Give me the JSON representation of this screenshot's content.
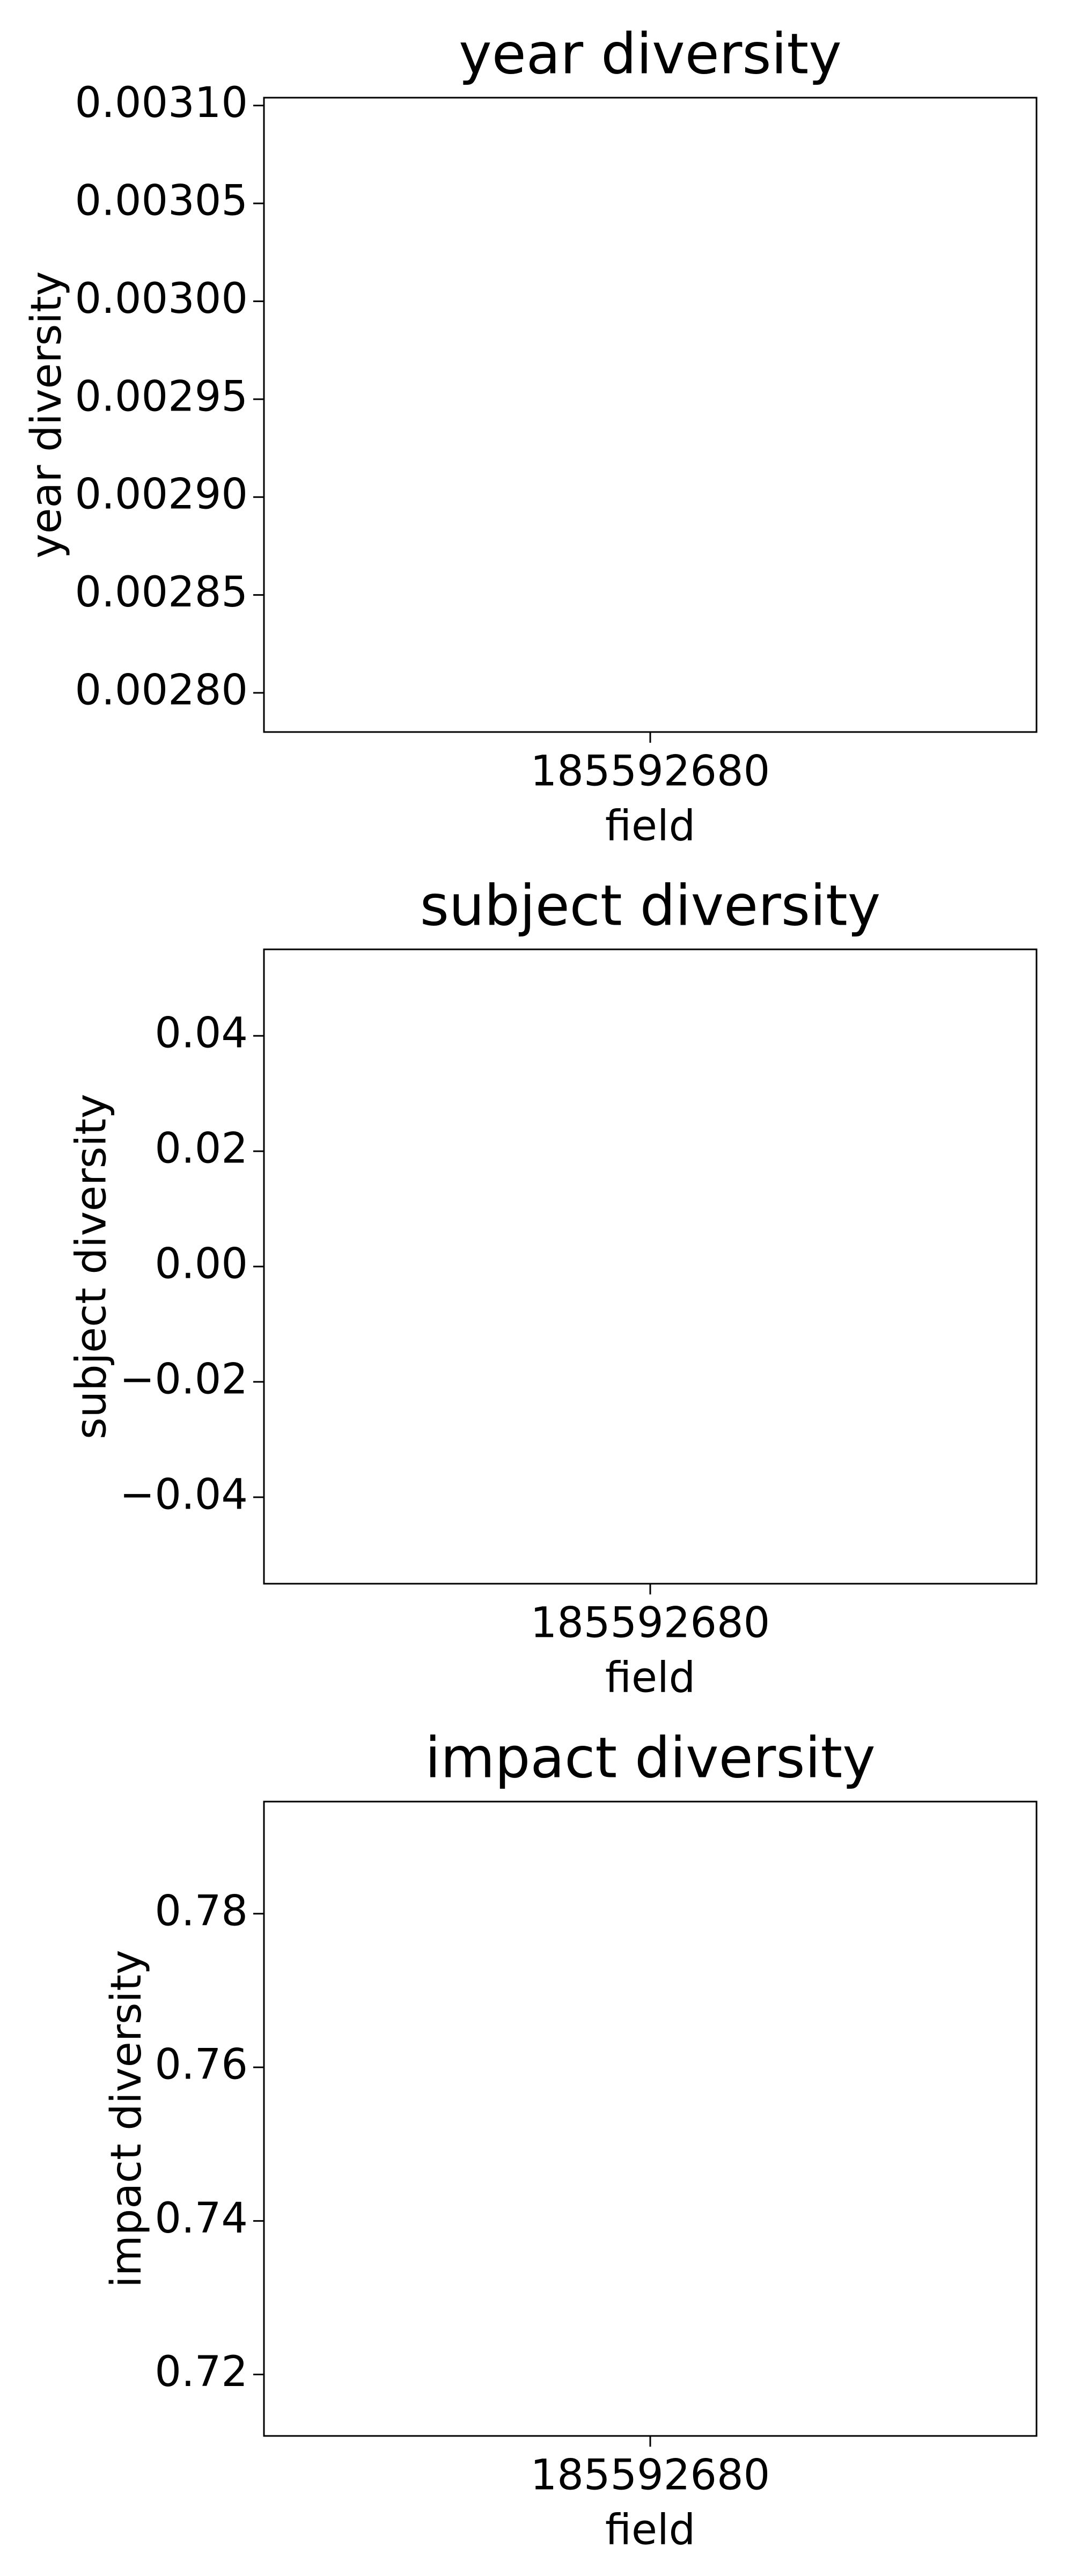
{
  "chart_data": [
    {
      "type": "box",
      "title": "year diversity",
      "x_label": "field",
      "y_label": "year diversity",
      "categories": [
        "185592680"
      ],
      "ylim": [
        0.00278,
        0.003104
      ],
      "yticks": [
        {
          "value": 0.0028,
          "label": "0.00280"
        },
        {
          "value": 0.00285,
          "label": "0.00285"
        },
        {
          "value": 0.0029,
          "label": "0.00290"
        },
        {
          "value": 0.00295,
          "label": "0.00295"
        },
        {
          "value": 0.003,
          "label": "0.00300"
        },
        {
          "value": 0.00305,
          "label": "0.00305"
        },
        {
          "value": 0.0031,
          "label": "0.00310"
        }
      ]
    },
    {
      "type": "box",
      "title": "subject diversity",
      "x_label": "field",
      "y_label": "subject diversity",
      "categories": [
        "185592680"
      ],
      "ylim": [
        -0.055,
        0.055
      ],
      "yticks": [
        {
          "value": -0.04,
          "label": "−0.04"
        },
        {
          "value": -0.02,
          "label": "−0.02"
        },
        {
          "value": 0,
          "label": "0.00"
        },
        0.02,
        0.04
      ]
    },
    {
      "type": "box",
      "title": "impact diversity",
      "x_label": "field",
      "y_label": "impact diversity",
      "categories": [
        "185592680"
      ],
      "ylim": [
        0.712,
        0.7946
      ],
      "yticks": [
        0.72,
        0.74,
        0.76,
        0.78
      ]
    }
  ]
}
